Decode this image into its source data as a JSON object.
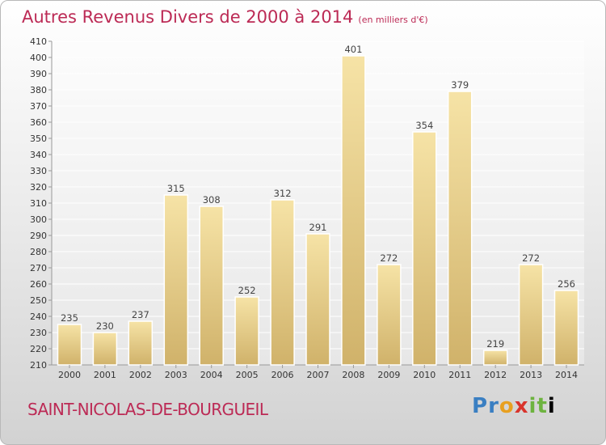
{
  "title": "Autres Revenus Divers de 2000 à 2014",
  "unit": "(en milliers d'€)",
  "city": "SAINT-NICOLAS-DE-BOURGUEIL",
  "logo": "Proxiti",
  "colors": {
    "accent": "#bc2a55",
    "bar_light": "#f6e3a6",
    "bar_dark": "#d0b26a"
  },
  "chart_data": {
    "type": "bar",
    "title": "Autres Revenus Divers de 2000 à 2014",
    "xlabel": "",
    "ylabel": "",
    "ylim": [
      210,
      410
    ],
    "ytick_step": 10,
    "grid": true,
    "categories": [
      "2000",
      "2001",
      "2002",
      "2003",
      "2004",
      "2005",
      "2006",
      "2007",
      "2008",
      "2009",
      "2010",
      "2011",
      "2012",
      "2013",
      "2014"
    ],
    "values": [
      235,
      230,
      237,
      315,
      308,
      252,
      312,
      291,
      401,
      272,
      354,
      379,
      219,
      272,
      256
    ]
  }
}
